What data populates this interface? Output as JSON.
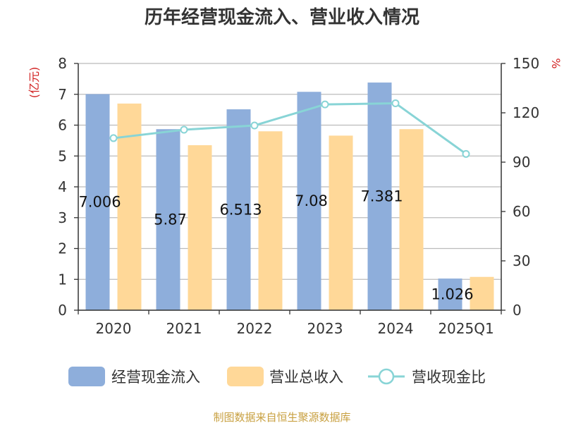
{
  "chart_data": {
    "type": "bar",
    "title": "历年经营现金流入、营业收入情况",
    "ylabel_left": "(亿元)",
    "ylabel_right": "%",
    "categories": [
      "2020",
      "2021",
      "2022",
      "2023",
      "2024",
      "2025Q1"
    ],
    "ylim_left": [
      0,
      8
    ],
    "yticks_left": [
      "0",
      "1",
      "2",
      "3",
      "4",
      "5",
      "6",
      "7",
      "8"
    ],
    "ylim_right": [
      0,
      150
    ],
    "yticks_right": [
      "0",
      "30",
      "60",
      "90",
      "120",
      "150"
    ],
    "grid": true,
    "legend_position": "bottom",
    "series": [
      {
        "name": "经营现金流入",
        "type": "bar",
        "axis": "left",
        "color": "#8eaedb",
        "values": [
          7.006,
          5.87,
          6.513,
          7.08,
          7.381,
          1.026
        ],
        "labels": [
          "7.006",
          "5.87",
          "6.513",
          "7.08",
          "7.381",
          "1.026"
        ]
      },
      {
        "name": "营业总收入",
        "type": "bar",
        "axis": "left",
        "color": "#ffd898",
        "values": [
          6.7,
          5.35,
          5.8,
          5.66,
          5.87,
          1.08
        ]
      },
      {
        "name": "营收现金比",
        "type": "line",
        "axis": "right",
        "color": "#88d4d6",
        "values": [
          104.6,
          109.7,
          112.3,
          125.1,
          125.8,
          95.0
        ]
      }
    ]
  },
  "source": "制图数据来自恒生聚源数据库"
}
